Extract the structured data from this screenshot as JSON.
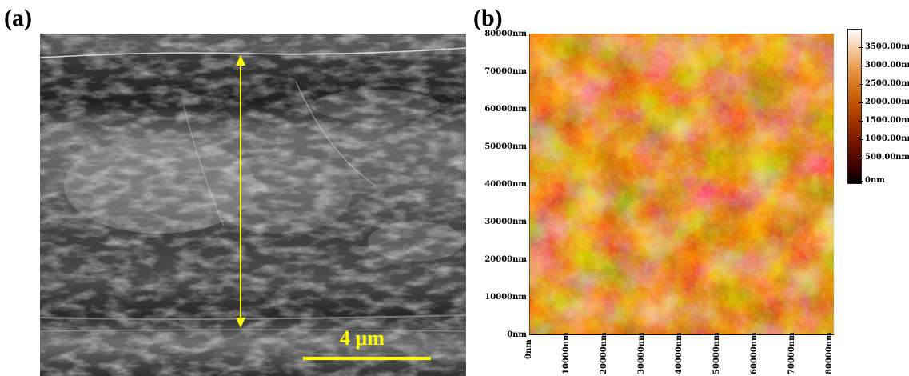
{
  "panels": {
    "a_label": "(a)",
    "b_label": "(b)"
  },
  "sem": {
    "scale_bar_label": "4 μm",
    "annotation_color": "#ffff00"
  },
  "afm": {
    "y_ticks": [
      "80000nm",
      "70000nm",
      "60000nm",
      "50000nm",
      "40000nm",
      "30000nm",
      "20000nm",
      "10000nm",
      "0nm"
    ],
    "x_ticks": [
      "0nm",
      "10000nm",
      "20000nm",
      "30000nm",
      "40000nm",
      "50000nm",
      "60000nm",
      "70000nm",
      "80000nm"
    ],
    "colorbar_ticks": [
      "3500.00nm",
      "3000.00nm",
      "2500.00nm",
      "2000.00nm",
      "1500.00nm",
      "1000.00nm",
      "500.00nm",
      "0nm"
    ]
  }
}
